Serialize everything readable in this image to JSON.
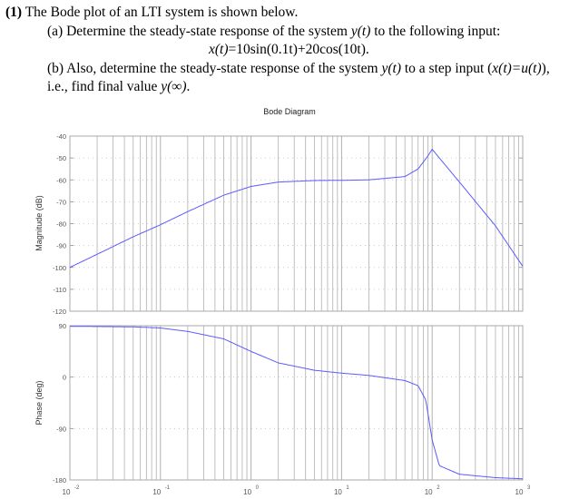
{
  "question": {
    "number": "(1)",
    "intro": "The Bode plot of an LTI system is shown below.",
    "part_a_prefix": "(a) Determine the steady-state response of the system ",
    "part_a_var": "y(t)",
    "part_a_suffix": " to the following input:",
    "input_signal_lhs": "x(t)",
    "input_signal_rhs": "=10sin(0.1t)+20cos(10t).",
    "part_b_prefix": "(b) Also, determine the steady-state response of the system ",
    "part_b_var": "y(t)",
    "part_b_mid": " to a step input (",
    "part_b_input": "x(t)=u(t)",
    "part_b_suffix": "),",
    "part_b_line2_prefix": "i.e., find final value ",
    "part_b_line2_var": "y(∞)",
    "part_b_line2_suffix": "."
  },
  "plot": {
    "title": "Bode Diagram",
    "line_color": "#5a5aff",
    "grid_color": "#b0b0b0"
  },
  "chart_data": [
    {
      "type": "line",
      "title": "Bode Diagram",
      "subplot": "magnitude",
      "xlabel": "",
      "ylabel": "Magnitude (dB)",
      "xscale": "log",
      "xlim": [
        0.01,
        1000
      ],
      "ylim": [
        -120,
        -40
      ],
      "x_ticks": [
        "10^-2",
        "10^-1",
        "10^0",
        "10^1",
        "10^2",
        "10^3"
      ],
      "y_ticks": [
        -40,
        -50,
        -60,
        -70,
        -80,
        -90,
        -100,
        -110,
        -120
      ],
      "grid": true,
      "x": [
        0.01,
        0.02,
        0.05,
        0.1,
        0.2,
        0.5,
        1,
        2,
        5,
        10,
        20,
        50,
        70,
        90,
        100,
        120,
        200,
        500,
        1000
      ],
      "values": [
        -100,
        -94,
        -86,
        -80.5,
        -74.5,
        -67,
        -63,
        -61,
        -60.3,
        -60.2,
        -60,
        -58.5,
        -55,
        -49,
        -46,
        -50,
        -61,
        -81,
        -99.5
      ]
    },
    {
      "type": "line",
      "subplot": "phase",
      "xlabel": "",
      "ylabel": "Phase (deg)",
      "xscale": "log",
      "xlim": [
        0.01,
        1000
      ],
      "ylim": [
        -180,
        90
      ],
      "x_ticks": [
        "10^-2",
        "10^-1",
        "10^0",
        "10^1",
        "10^2",
        "10^3"
      ],
      "y_ticks": [
        90,
        0,
        -90,
        -180
      ],
      "grid": true,
      "x": [
        0.01,
        0.05,
        0.1,
        0.2,
        0.5,
        1,
        2,
        5,
        10,
        20,
        50,
        70,
        85,
        100,
        120,
        200,
        500,
        1000
      ],
      "values": [
        89,
        88,
        86,
        80,
        67,
        45,
        25,
        12,
        7,
        3,
        -6,
        -15,
        -40,
        -110,
        -155,
        -170,
        -176,
        -178
      ]
    }
  ],
  "axes_labels": {
    "magnitude_ylabel": "Magnitude (dB)",
    "phase_ylabel": "Phase (deg)",
    "mag_ticks": [
      "-40",
      "-50",
      "-60",
      "-70",
      "-80",
      "-90",
      "-100",
      "-110",
      "-120"
    ],
    "phase_ticks": [
      "90",
      "0",
      "-90",
      "-180"
    ],
    "x_base": "10",
    "x_exps": [
      "-2",
      "-1",
      "0",
      "1",
      "2",
      "3"
    ]
  }
}
